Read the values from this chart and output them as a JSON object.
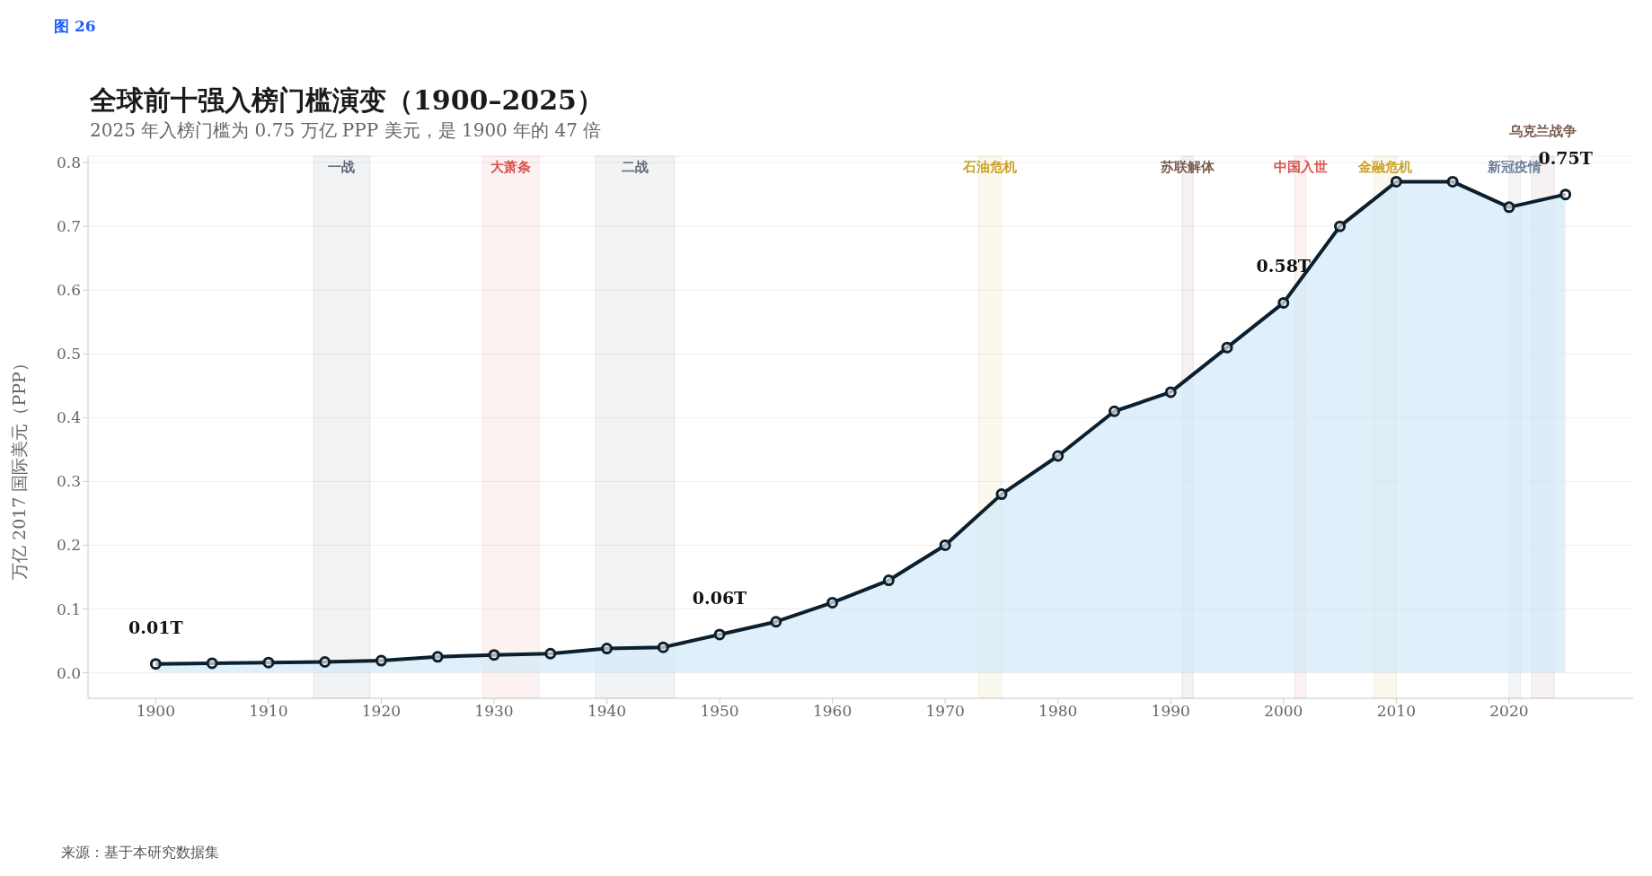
{
  "chart_data": {
    "type": "area",
    "title": "全球前十强入榜门槛演变（1900–2025）",
    "subtitle": "2025 年入榜门槛为 0.75 万亿 PPP 美元，是 1900 年的 47 倍",
    "ylabel": "万亿 2017 国际美元（PPP）",
    "x": [
      1900,
      1905,
      1910,
      1915,
      1920,
      1925,
      1930,
      1935,
      1940,
      1945,
      1950,
      1955,
      1960,
      1965,
      1970,
      1975,
      1980,
      1985,
      1990,
      1995,
      2000,
      2005,
      2010,
      2015,
      2020,
      2025
    ],
    "series": [
      {
        "color": "#0b1f2e",
        "values": [
          0.014,
          0.015,
          0.016,
          0.017,
          0.019,
          0.025,
          0.028,
          0.03,
          0.038,
          0.04,
          0.06,
          0.08,
          0.11,
          0.145,
          0.2,
          0.28,
          0.34,
          0.41,
          0.44,
          0.51,
          0.58,
          0.7,
          0.77,
          0.77,
          0.73,
          0.75
        ]
      }
    ],
    "xlim": [
      1894,
      2031
    ],
    "xticks": [
      1900,
      1910,
      1920,
      1930,
      1940,
      1950,
      1960,
      1970,
      1980,
      1990,
      2000,
      2010,
      2020
    ],
    "ylim": [
      -0.04,
      0.81
    ],
    "yticks": [
      {
        "value": 0,
        "label": "0.0"
      },
      {
        "value": 0.1,
        "label": "0.1"
      },
      {
        "value": 0.2,
        "label": "0.2"
      },
      {
        "value": 0.3,
        "label": "0.3"
      },
      {
        "value": 0.4,
        "label": "0.4"
      },
      {
        "value": 0.5,
        "label": "0.5"
      },
      {
        "value": 0.6,
        "label": "0.6"
      },
      {
        "value": 0.7,
        "label": "0.7"
      },
      {
        "value": 0.8,
        "label": "0.8"
      }
    ],
    "grid": "y",
    "marker": "circle",
    "legend": false,
    "bands": [
      {
        "axis": "x",
        "from": 1914,
        "to": 1919,
        "label": "一战",
        "color": "#5f6b7a"
      },
      {
        "axis": "x",
        "from": 1929,
        "to": 1934,
        "label": "大萧条",
        "color": "#d9534f"
      },
      {
        "axis": "x",
        "from": 1939,
        "to": 1946,
        "label": "二战",
        "color": "#5f6b7a"
      },
      {
        "axis": "x",
        "from": 1973,
        "to": 1975,
        "label": "石油危机",
        "color": "#c9a227"
      },
      {
        "axis": "x",
        "from": 1991,
        "to": 1992,
        "label": "苏联解体",
        "color": "#7a5c50"
      },
      {
        "axis": "x",
        "from": 2001,
        "to": 2002,
        "label": "中国入世",
        "color": "#d9534f"
      },
      {
        "axis": "x",
        "from": 2008,
        "to": 2010,
        "label": "金融危机",
        "color": "#c9a227"
      },
      {
        "axis": "x",
        "from": 2020,
        "to": 2021,
        "label": "新冠疫情",
        "color": "#6b7f99"
      },
      {
        "axis": "x",
        "from": 2022,
        "to": 2024,
        "label": "乌克兰战争",
        "color": "#7a5c50"
      }
    ],
    "annotations": [
      "图 26",
      {
        "text": "0.01T",
        "x": 1900,
        "y": 0.014
      },
      {
        "text": "0.06T",
        "x": 1950,
        "y": 0.06
      },
      {
        "text": "0.58T",
        "x": 2000,
        "y": 0.58
      },
      {
        "text": "0.75T",
        "x": 2025,
        "y": 0.75
      },
      "来源：基于本研究数据集"
    ]
  }
}
